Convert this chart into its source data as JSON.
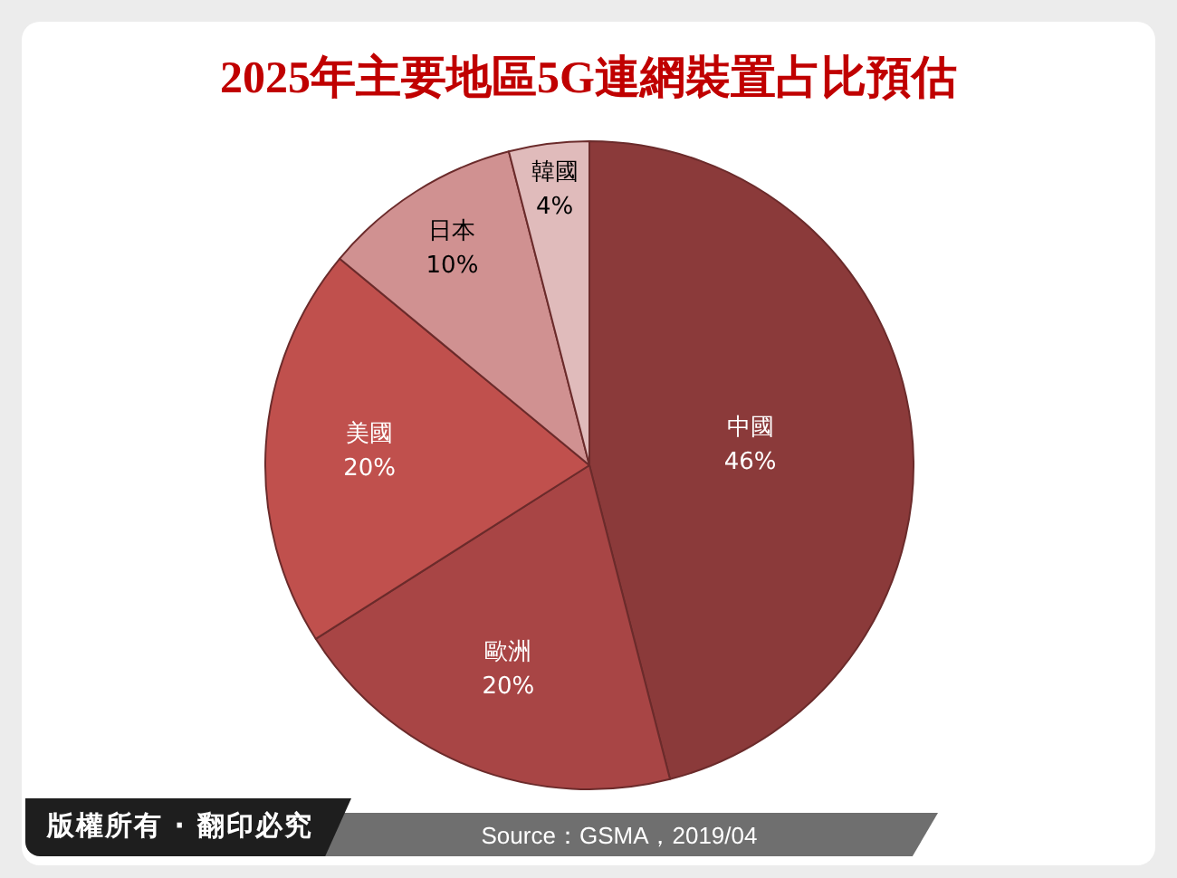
{
  "chart_data": {
    "type": "pie",
    "title": "2025年主要地區5G連網裝置占比預估",
    "categories": [
      "中國",
      "歐洲",
      "美國",
      "日本",
      "韓國"
    ],
    "values": [
      46,
      20,
      20,
      10,
      4
    ],
    "colors": [
      "#8b3a3a",
      "#a84545",
      "#c0504d",
      "#d09191",
      "#e0bbbb"
    ],
    "value_labels": [
      "46%",
      "20%",
      "20%",
      "10%",
      "4%"
    ],
    "annotations": [
      "版權所有 · 翻印必究",
      "Source：GSMA，2019/04"
    ]
  }
}
